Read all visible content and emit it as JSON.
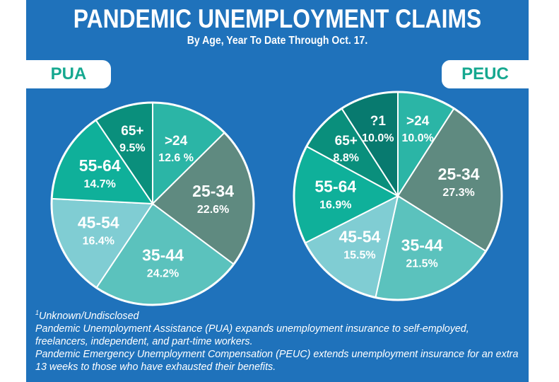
{
  "title": "PANDEMIC UNEMPLOYMENT CLAIMS",
  "subtitle": "By Age, Year To Date Through Oct. 17.",
  "footnotes": {
    "unknown": "Unknown/Undisclosed",
    "unknown_marker": "1",
    "pua": "Pandemic Unemployment Assistance (PUA) expands unemployment  insurance to self-employed, freelancers, independent, and part-time workers.",
    "peuc": "Pandemic Emergency Unemployment Compensation (PEUC) extends unemployment insurance for an extra 13 weeks to those who have exhausted their benefits."
  },
  "colors": {
    "background": "#1f72bb",
    "accent": "#16a890"
  },
  "chart_data": [
    {
      "type": "pie",
      "title": "PUA",
      "categories": [
        ">24",
        "25-34",
        "35-44",
        "45-54",
        "55-64",
        "65+"
      ],
      "values": [
        12.6,
        22.6,
        24.2,
        16.4,
        14.7,
        9.5
      ],
      "labels": [
        "12.6 %",
        "22.6%",
        "24.2%",
        "16.4%",
        "14.7%",
        "9.5%"
      ],
      "colors": [
        "#2bb5a6",
        "#5f8a80",
        "#5bc2bd",
        "#80cdd3",
        "#0fb09a",
        "#0a8f7c"
      ],
      "direction": "clockwise from top"
    },
    {
      "type": "pie",
      "title": "PEUC",
      "categories": [
        ">24",
        "25-34",
        "35-44",
        "45-54",
        "55-64",
        "65+",
        "?1"
      ],
      "values": [
        10.0,
        27.3,
        21.5,
        15.5,
        16.9,
        8.8,
        10.0
      ],
      "labels": [
        "10.0%",
        "27.3%",
        "21.5%",
        "15.5%",
        "16.9%",
        "8.8%",
        "10.0%"
      ],
      "colors": [
        "#2bb5a6",
        "#5f8a80",
        "#5bc2bd",
        "#80cdd3",
        "#0fb09a",
        "#0a8f7c",
        "#087a6f"
      ],
      "direction": "clockwise from top"
    }
  ]
}
